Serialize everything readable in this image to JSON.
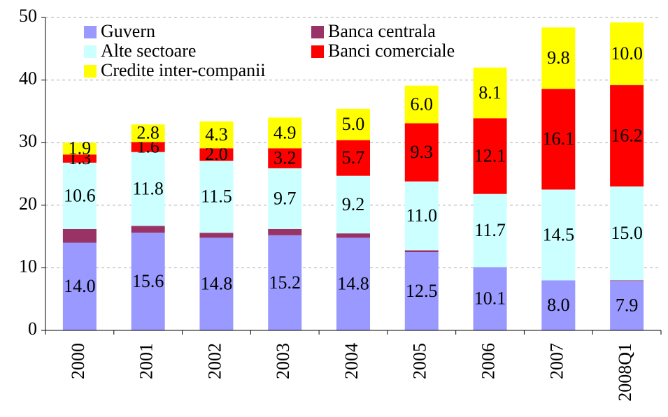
{
  "chart_data": {
    "type": "stacked_bar",
    "categories": [
      "2000",
      "2001",
      "2002",
      "2003",
      "2004",
      "2005",
      "2006",
      "2007",
      "2008Q1"
    ],
    "series": [
      {
        "name": "Guvern",
        "color": "#9999ff",
        "values": [
          14.0,
          15.6,
          14.8,
          15.2,
          14.8,
          12.5,
          10.1,
          8.0,
          7.9
        ],
        "value_labels": [
          "14.0",
          "15.6",
          "14.8",
          "15.2",
          "14.8",
          "12.5",
          "10.1",
          "8.0",
          "7.9"
        ]
      },
      {
        "name": "Banca centrala",
        "color": "#993366",
        "values": [
          2.2,
          1.1,
          0.8,
          1.0,
          0.7,
          0.3,
          0,
          0,
          0.1
        ]
      },
      {
        "name": "Alte sectoare",
        "color": "#ccffff",
        "values": [
          10.6,
          11.8,
          11.5,
          9.7,
          9.2,
          11.0,
          11.7,
          14.5,
          15.0
        ],
        "value_labels": [
          "10.6",
          "11.8",
          "11.5",
          "9.7",
          "9.2",
          "11.0",
          "11.7",
          "14.5",
          "15.0"
        ]
      },
      {
        "name": "Banci comerciale",
        "color": "#ff0000",
        "values": [
          1.3,
          1.6,
          2.0,
          3.2,
          5.7,
          9.3,
          12.1,
          16.1,
          16.2
        ],
        "value_labels": [
          "1.3",
          "1.6",
          "2.0",
          "3.2",
          "5.7",
          "9.3",
          "12.1",
          "16.1",
          "16.2"
        ]
      },
      {
        "name": "Credite inter-companii",
        "color": "#ffff00",
        "values": [
          1.9,
          2.8,
          4.3,
          4.9,
          5.0,
          6.0,
          8.1,
          9.8,
          10.0
        ],
        "value_labels": [
          "1.9",
          "2.8",
          "4.3",
          "4.9",
          "5.0",
          "6.0",
          "8.1",
          "9.8",
          "10.0"
        ]
      }
    ],
    "ylim": [
      0,
      50
    ],
    "yticks": [
      0,
      10,
      20,
      30,
      40,
      50
    ],
    "grid": true,
    "legend": "top-left"
  }
}
